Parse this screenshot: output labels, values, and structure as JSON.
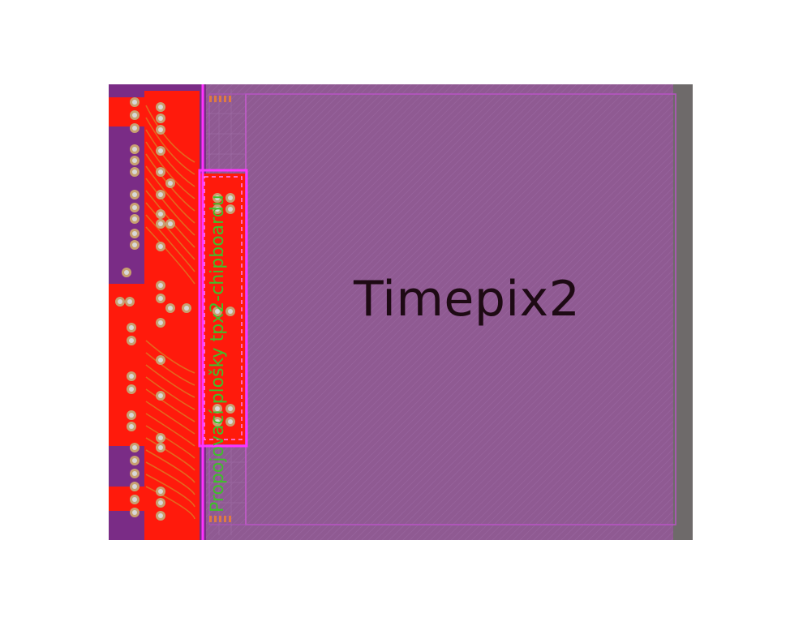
{
  "labels": {
    "chip": "Timepix2",
    "pads": "Propojovací plošky tpx2-chipboardu"
  },
  "colors": {
    "chip_fill": "#8f5a92",
    "copper_top": "#ff1a0c",
    "board_base": "#7a2c86",
    "outline": "#ff33ff",
    "frame": "#6e6a6a",
    "pad_label_text": "#3fc02a",
    "chip_text": "#1e0a14"
  }
}
